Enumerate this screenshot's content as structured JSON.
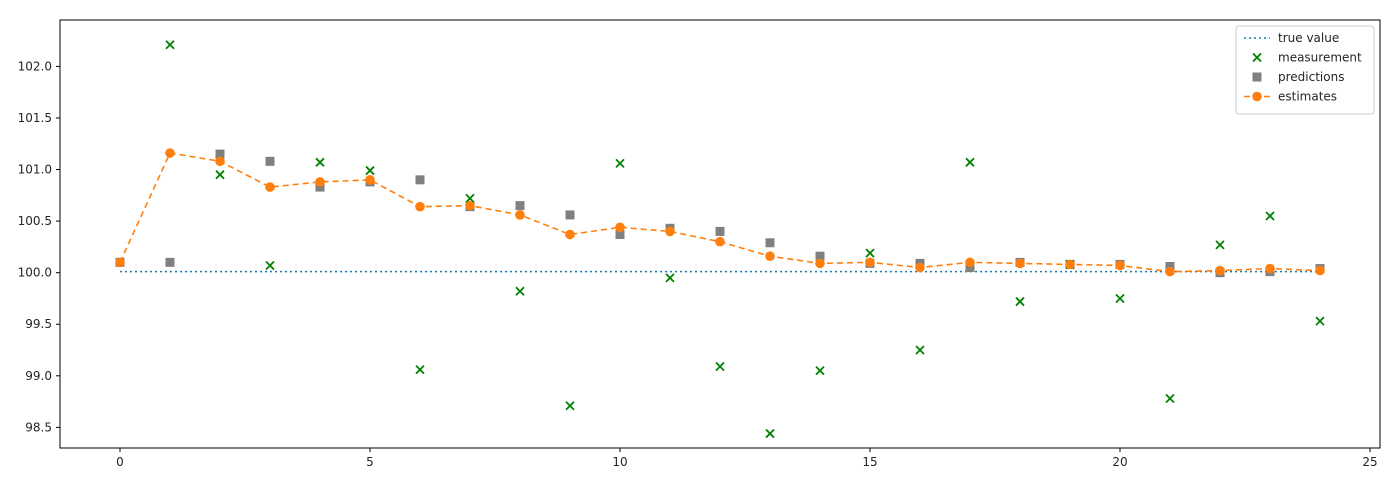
{
  "chart_data": {
    "type": "scatter",
    "title": "",
    "xlabel": "",
    "ylabel": "",
    "xlim": [
      -1.2,
      25.2
    ],
    "ylim": [
      98.3,
      102.45
    ],
    "x_ticks": [
      0,
      5,
      10,
      15,
      20,
      25
    ],
    "x_tick_labels": [
      "0",
      "5",
      "10",
      "15",
      "20",
      "25"
    ],
    "y_ticks": [
      98.5,
      99.0,
      99.5,
      100.0,
      100.5,
      101.0,
      101.5,
      102.0
    ],
    "y_tick_labels": [
      "98.5",
      "99.0",
      "99.5",
      "100.0",
      "100.5",
      "101.0",
      "101.5",
      "102.0"
    ],
    "grid": false,
    "legend_position": "top-right",
    "x": [
      0,
      1,
      2,
      3,
      4,
      5,
      6,
      7,
      8,
      9,
      10,
      11,
      12,
      13,
      14,
      15,
      16,
      17,
      18,
      19,
      20,
      21,
      22,
      23,
      24
    ],
    "series": [
      {
        "name": "true value",
        "kind": "line",
        "style": "dotted",
        "color": "#1f77b4",
        "values": [
          100.01,
          100.01,
          100.01,
          100.01,
          100.01,
          100.01,
          100.01,
          100.01,
          100.01,
          100.01,
          100.01,
          100.01,
          100.01,
          100.01,
          100.01,
          100.01,
          100.01,
          100.01,
          100.01,
          100.01,
          100.01,
          100.01,
          100.01,
          100.01,
          100.01
        ]
      },
      {
        "name": "measurement",
        "kind": "scatter",
        "marker": "x",
        "color": "#008000",
        "x": [
          1,
          2,
          3,
          4,
          5,
          6,
          7,
          8,
          9,
          10,
          11,
          12,
          13,
          14,
          15,
          16,
          17,
          18,
          19,
          20,
          21,
          22,
          23,
          24
        ],
        "values": [
          102.21,
          100.95,
          100.07,
          101.07,
          100.99,
          99.06,
          100.72,
          99.82,
          98.71,
          101.06,
          99.95,
          99.09,
          98.44,
          99.05,
          100.19,
          99.25,
          101.07,
          99.72,
          100.08,
          99.75,
          98.78,
          100.27,
          100.55,
          99.53
        ]
      },
      {
        "name": "predictions",
        "kind": "scatter",
        "marker": "square",
        "color": "#808080",
        "x": [
          0,
          1,
          2,
          3,
          4,
          5,
          6,
          7,
          8,
          9,
          10,
          11,
          12,
          13,
          14,
          15,
          16,
          17,
          18,
          19,
          20,
          21,
          22,
          23,
          24
        ],
        "values": [
          100.1,
          100.1,
          101.15,
          101.08,
          100.83,
          100.88,
          100.9,
          100.64,
          100.65,
          100.56,
          100.37,
          100.43,
          100.4,
          100.29,
          100.16,
          100.09,
          100.09,
          100.05,
          100.1,
          100.08,
          100.08,
          100.06,
          100.0,
          100.01,
          100.04
        ]
      },
      {
        "name": "estimates",
        "kind": "line+marker",
        "style": "dashed",
        "marker": "circle",
        "color": "#ff7f0e",
        "x": [
          0,
          1,
          2,
          3,
          4,
          5,
          6,
          7,
          8,
          9,
          10,
          11,
          12,
          13,
          14,
          15,
          16,
          17,
          18,
          19,
          20,
          21,
          22,
          23,
          24
        ],
        "values": [
          100.1,
          101.16,
          101.08,
          100.83,
          100.88,
          100.9,
          100.64,
          100.65,
          100.56,
          100.37,
          100.44,
          100.4,
          100.3,
          100.16,
          100.09,
          100.1,
          100.05,
          100.1,
          100.09,
          100.08,
          100.07,
          100.01,
          100.02,
          100.04,
          100.02
        ]
      }
    ]
  }
}
